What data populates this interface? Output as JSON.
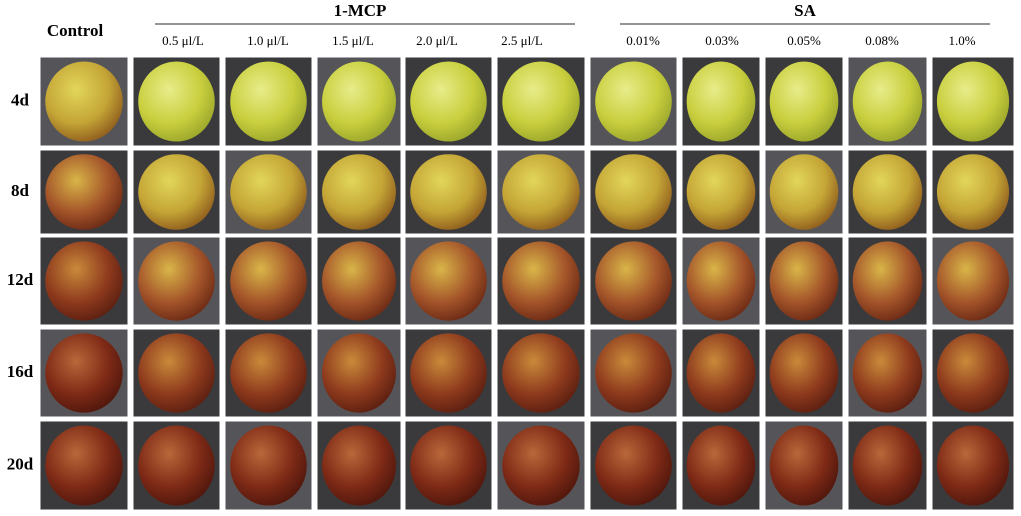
{
  "header": {
    "control": "Control",
    "groups": [
      {
        "title": "1-MCP",
        "items": [
          "0.5 μl/L",
          "1.0 μl/L",
          "1.5 μl/L",
          "2.0 μl/L",
          "2.5 μl/L"
        ]
      },
      {
        "title": "SA",
        "items": [
          "0.01%",
          "0.03%",
          "0.05%",
          "0.08%",
          "1.0%"
        ]
      }
    ]
  },
  "rows": [
    "4d",
    "8d",
    "12d",
    "16d",
    "20d"
  ]
}
